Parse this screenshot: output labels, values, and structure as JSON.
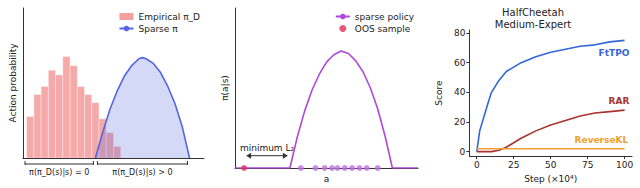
{
  "chart_data": [
    {
      "type": "histogram",
      "ylabel": "Action probability",
      "xlim": [
        0,
        1
      ],
      "ylim": [
        0,
        1.3
      ],
      "tick_labels": false,
      "grid": false,
      "legend": "upper right",
      "series": [
        {
          "name": "Empirical π_D",
          "color": "#f4a0a0",
          "bins": [
            0.02,
            0.06,
            0.1,
            0.14,
            0.18,
            0.22,
            0.26,
            0.3,
            0.34,
            0.38,
            0.42,
            0.46,
            0.5,
            0.54
          ],
          "counts": [
            0.36,
            0.55,
            0.62,
            0.76,
            0.72,
            0.88,
            0.8,
            0.62,
            0.55,
            0.48,
            0.34,
            0.22,
            0.1
          ]
        },
        {
          "name": "Sparse π",
          "type": "line",
          "color": "#5566e0",
          "x": [
            0.4,
            0.44,
            0.48,
            0.52,
            0.56,
            0.6,
            0.64,
            0.66,
            0.68,
            0.72,
            0.76,
            0.8,
            0.84,
            0.88,
            0.92
          ],
          "values": [
            0,
            0.22,
            0.42,
            0.58,
            0.71,
            0.8,
            0.86,
            0.87,
            0.86,
            0.82,
            0.74,
            0.62,
            0.47,
            0.27,
            0
          ]
        }
      ],
      "annotations": [
        {
          "text": "π(π_D(s)|s) = 0",
          "x": [
            0,
            0.4
          ]
        },
        {
          "text": "π(π_D(s)|s) > 0",
          "x": [
            0.4,
            0.92
          ]
        }
      ]
    },
    {
      "type": "line",
      "xlabel": "a",
      "ylabel": "π(a|s)",
      "xlim": [
        0,
        1
      ],
      "ylim": [
        0,
        1.3
      ],
      "tick_labels": false,
      "grid": false,
      "legend": "upper right",
      "series": [
        {
          "name": "sparse policy",
          "color": "#b048d8",
          "x": [
            0,
            0.3,
            0.34,
            0.38,
            0.42,
            0.46,
            0.5,
            0.54,
            0.58,
            0.62,
            0.66,
            0.7,
            0.74,
            0.78,
            0.82,
            0.86,
            1
          ],
          "values": [
            0,
            0,
            0.25,
            0.46,
            0.63,
            0.76,
            0.86,
            0.92,
            0.95,
            0.93,
            0.87,
            0.78,
            0.65,
            0.48,
            0.26,
            0,
            0
          ]
        },
        {
          "type": "scatter",
          "color": "#c070e0",
          "x": [
            0.36,
            0.44,
            0.49,
            0.53,
            0.56,
            0.6,
            0.64,
            0.68,
            0.72,
            0.78
          ],
          "values": [
            0,
            0,
            0,
            0,
            0,
            0,
            0,
            0,
            0,
            0
          ]
        },
        {
          "name": "OOS sample",
          "type": "scatter",
          "color": "#e0305a",
          "x": [
            0.05
          ],
          "values": [
            0
          ]
        }
      ],
      "annotations": [
        {
          "text": "minimum L₂",
          "x": [
            0.05,
            0.3
          ],
          "y": 0.1
        }
      ]
    },
    {
      "type": "line",
      "title": "HalfCheetah\nMedium-Expert",
      "xlabel": "Step (×10⁴)",
      "ylabel": "Score",
      "xlim": [
        -5,
        105
      ],
      "ylim": [
        -3,
        82
      ],
      "xticks": [
        0,
        25,
        50,
        75,
        100
      ],
      "yticks": [
        0,
        20,
        40,
        60,
        80
      ],
      "grid": false,
      "legend": "inline",
      "series": [
        {
          "name": "FtTPO",
          "color": "#3366d6",
          "x": [
            0,
            2,
            5,
            8,
            10,
            15,
            20,
            25,
            30,
            40,
            50,
            60,
            70,
            80,
            90,
            100
          ],
          "values": [
            0,
            14,
            24,
            34,
            40,
            48,
            54,
            57,
            60,
            64,
            67,
            69,
            71,
            72,
            74,
            75
          ]
        },
        {
          "name": "RAR",
          "color": "#a8322d",
          "x": [
            0,
            2,
            5,
            8,
            10,
            15,
            20,
            25,
            30,
            40,
            50,
            60,
            70,
            80,
            90,
            100
          ],
          "values": [
            0,
            0,
            0,
            0,
            0,
            1,
            3,
            6,
            9,
            14,
            18,
            21,
            24,
            26,
            27,
            28
          ]
        },
        {
          "name": "ReverseKL",
          "color": "#f0a030",
          "x": [
            0,
            2,
            5,
            8,
            10,
            15,
            20,
            25,
            30,
            40,
            50,
            60,
            70,
            80,
            90,
            100
          ],
          "values": [
            2,
            2,
            2,
            2,
            2,
            2,
            2,
            2,
            2,
            2,
            2,
            2,
            2,
            2,
            2,
            2
          ]
        }
      ]
    }
  ]
}
